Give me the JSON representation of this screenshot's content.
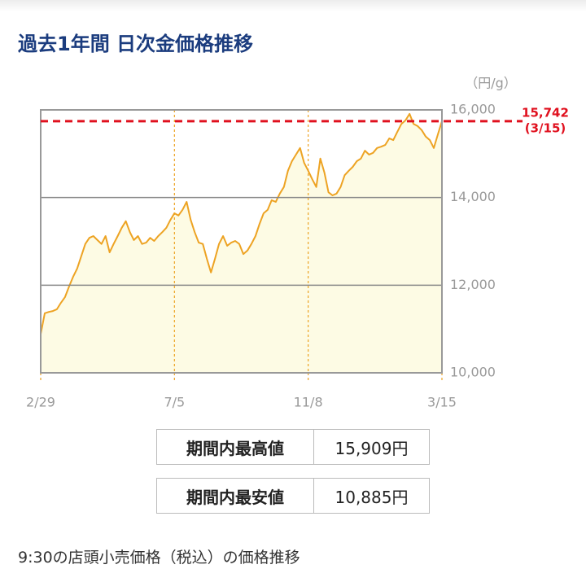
{
  "chart_data": {
    "type": "line",
    "title": "過去1年間 日次金価格推移",
    "y_label": "（円/g）",
    "series": [
      {
        "name": "価格",
        "color": "#eda323",
        "fill": "#fdfbe4",
        "values": [
          10885,
          11360,
          11390,
          11410,
          11450,
          11600,
          11730,
          11970,
          12190,
          12380,
          12660,
          12940,
          13080,
          13120,
          13030,
          12940,
          13120,
          12750,
          12940,
          13120,
          13310,
          13460,
          13210,
          13030,
          13120,
          12940,
          12970,
          13080,
          13010,
          13120,
          13210,
          13310,
          13490,
          13640,
          13590,
          13720,
          13900,
          13490,
          13210,
          12970,
          12940,
          12600,
          12290,
          12600,
          12940,
          13120,
          12900,
          12970,
          13010,
          12940,
          12710,
          12790,
          12940,
          13120,
          13400,
          13640,
          13720,
          13940,
          13900,
          14090,
          14240,
          14610,
          14830,
          14980,
          15130,
          14790,
          14610,
          14420,
          14240,
          14890,
          14570,
          14120,
          14050,
          14090,
          14240,
          14510,
          14610,
          14700,
          14830,
          14890,
          15070,
          14980,
          15020,
          15130,
          15160,
          15200,
          15350,
          15310,
          15500,
          15680,
          15760,
          15909,
          15680,
          15630,
          15540,
          15390,
          15310,
          15130,
          15440,
          15742
        ]
      }
    ],
    "xlim": [
      0,
      99
    ],
    "xticks": [
      {
        "value": 0,
        "label": "2/29"
      },
      {
        "value": 33,
        "label": "7/5"
      },
      {
        "value": 66,
        "label": "11/8"
      },
      {
        "value": 99,
        "label": "3/15"
      }
    ],
    "ylim": [
      10000,
      16000
    ],
    "yticks": [
      {
        "value": 10000,
        "label": "10,000"
      },
      {
        "value": 12000,
        "label": "12,000"
      },
      {
        "value": 14000,
        "label": "14,000"
      },
      {
        "value": 16000,
        "label": "16,000"
      }
    ],
    "grid": true,
    "reference_line": {
      "value": 15742,
      "label": "15,742",
      "date_label": "(3/15)",
      "color": "#e0101e"
    }
  },
  "table": {
    "rows": [
      [
        "期間内最高値",
        "15,909円"
      ],
      [
        "期間内最安値",
        "10,885円"
      ]
    ]
  },
  "footnote": "9:30の店頭小売価格（税込）の価格推移"
}
